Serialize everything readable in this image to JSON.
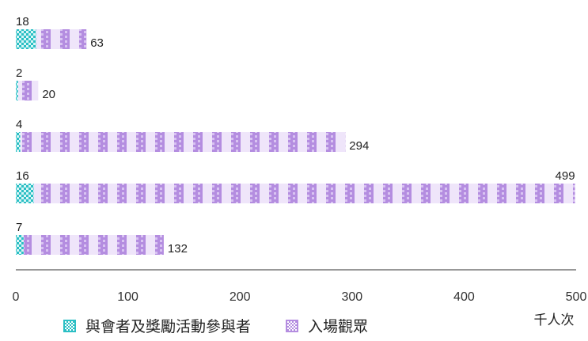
{
  "chart_data": {
    "type": "bar",
    "orientation": "horizontal",
    "stacked": true,
    "unit": "千人次",
    "xlim": [
      0,
      500
    ],
    "xticks": [
      "0",
      "100",
      "200",
      "300",
      "400",
      "500"
    ],
    "legend_position": "bottom",
    "series": [
      {
        "name": "與會者及獎勵活動參與者",
        "color": "#2bbfc4",
        "values": [
          18,
          2,
          4,
          16,
          7
        ]
      },
      {
        "name": "入場觀眾",
        "color": "#b48de0",
        "values": [
          63,
          20,
          294,
          499,
          132
        ]
      }
    ]
  }
}
